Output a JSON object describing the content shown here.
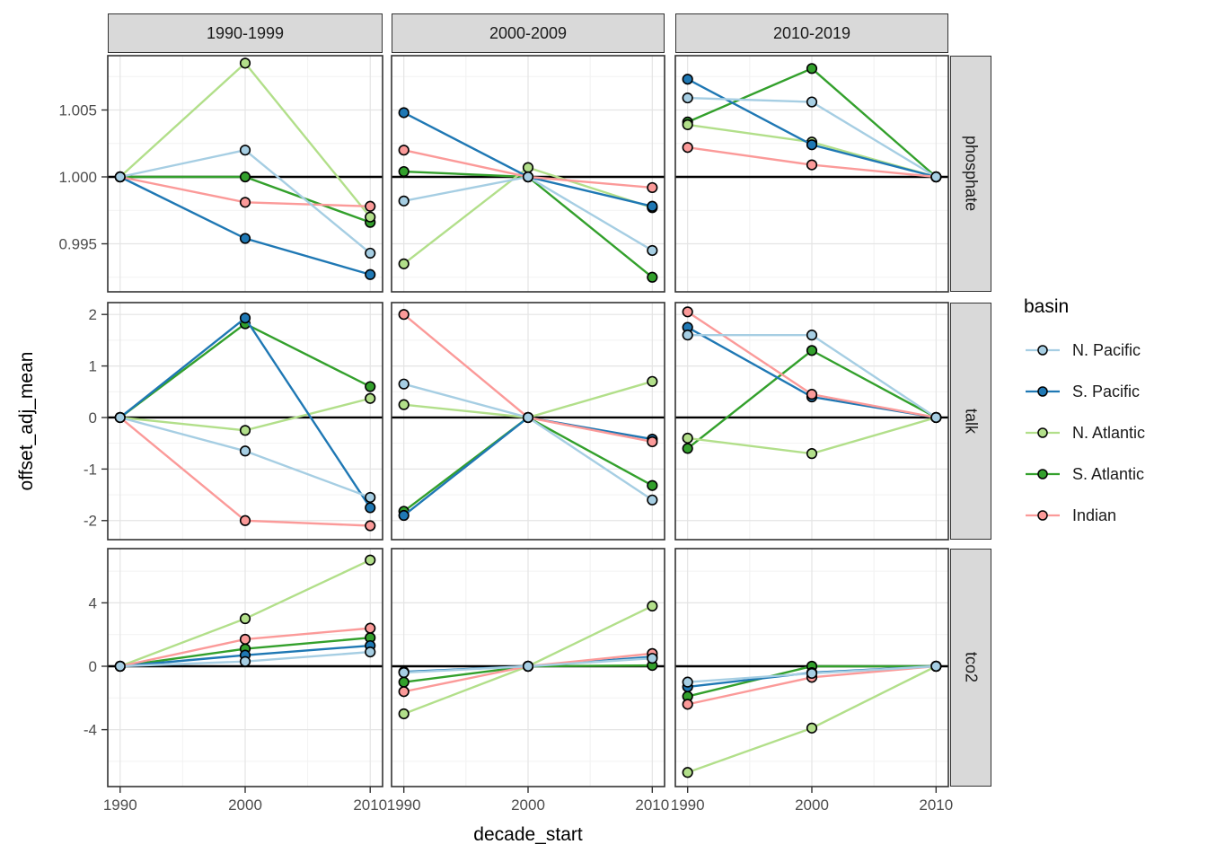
{
  "chart_data": {
    "type": "line",
    "xlabel": "decade_start",
    "ylabel": "offset_adj_mean",
    "legend_title": "basin",
    "legend_position": "right",
    "grid": "on",
    "x": [
      1990,
      2000,
      2010
    ],
    "x_tick_labels": [
      "1990",
      "2000",
      "2010"
    ],
    "x_domain": [
      1990,
      2010
    ],
    "x_minor": [
      1995,
      2005
    ],
    "col_facets": [
      "1990-1999",
      "2000-2009",
      "2010-2019"
    ],
    "row_facets": [
      {
        "label": "phosphate",
        "ticks": [
          0.995,
          1.0,
          1.005
        ],
        "tick_labels": [
          "0.995",
          "1.000",
          "1.005"
        ],
        "minor_ticks": [
          0.9925,
          0.9975,
          1.0025,
          1.0075
        ],
        "ylim": [
          0.99141,
          1.00906
        ],
        "ref_line": 1.0
      },
      {
        "label": "talk",
        "ticks": [
          -2,
          -1,
          0,
          1,
          2
        ],
        "tick_labels": [
          "-2",
          "-1",
          "0",
          "1",
          "2"
        ],
        "minor_ticks": [
          -1.5,
          -0.5,
          0.5,
          1.5
        ],
        "ylim": [
          -2.37,
          2.23
        ],
        "ref_line": 0
      },
      {
        "label": "tco2",
        "ticks": [
          -4,
          0,
          4
        ],
        "tick_labels": [
          "-4",
          "0",
          "4"
        ],
        "minor_ticks": [
          -6,
          -2,
          2,
          6
        ],
        "ylim": [
          -7.59,
          7.42
        ],
        "ref_line": 0
      }
    ],
    "series": [
      {
        "name": "N. Pacific",
        "color": "#a6cee3",
        "values": [
          [
            [
              1.0,
              1.002,
              0.9943
            ],
            [
              0.9982,
              1.0,
              0.9945
            ],
            [
              1.0059,
              1.0056,
              1.0
            ]
          ],
          [
            [
              0,
              -0.65,
              -1.55
            ],
            [
              0.65,
              0,
              -1.6
            ],
            [
              1.6,
              1.6,
              0
            ]
          ],
          [
            [
              0,
              0.3,
              0.9
            ],
            [
              -0.4,
              0,
              0.5
            ],
            [
              -1.0,
              -0.45,
              0
            ]
          ]
        ]
      },
      {
        "name": "S. Pacific",
        "color": "#1f78b4",
        "values": [
          [
            [
              1.0,
              0.9954,
              0.9927
            ],
            [
              1.0048,
              1.0,
              0.9978
            ],
            [
              1.0073,
              1.0024,
              1.0
            ]
          ],
          [
            [
              0,
              1.93,
              -1.75
            ],
            [
              -1.9,
              0,
              -0.42
            ],
            [
              1.75,
              0.4,
              0
            ]
          ],
          [
            [
              0,
              0.7,
              1.3
            ],
            [
              -0.35,
              0,
              0.6
            ],
            [
              -1.3,
              -0.4,
              0
            ]
          ]
        ]
      },
      {
        "name": "N. Atlantic",
        "color": "#b2df8a",
        "values": [
          [
            [
              1.0,
              1.0085,
              0.997
            ],
            [
              0.9935,
              1.0007,
              0.9977
            ],
            [
              1.0039,
              1.0026,
              1.0
            ]
          ],
          [
            [
              0,
              -0.25,
              0.37
            ],
            [
              0.25,
              0,
              0.7
            ],
            [
              -0.4,
              -0.7,
              0
            ]
          ],
          [
            [
              0,
              3.0,
              6.7
            ],
            [
              -3.0,
              0,
              3.8
            ],
            [
              -6.7,
              -3.9,
              0
            ]
          ]
        ]
      },
      {
        "name": "S. Atlantic",
        "color": "#33a02c",
        "values": [
          [
            [
              1.0,
              1.0,
              0.9966
            ],
            [
              1.0004,
              1.0,
              0.9925
            ],
            [
              1.0041,
              1.0081,
              1.0
            ]
          ],
          [
            [
              0,
              1.82,
              0.6
            ],
            [
              -1.82,
              0,
              -1.32
            ],
            [
              -0.6,
              1.3,
              0
            ]
          ],
          [
            [
              0,
              1.1,
              1.8
            ],
            [
              -1.0,
              0,
              0.05
            ],
            [
              -1.9,
              0.0,
              0
            ]
          ]
        ]
      },
      {
        "name": "Indian",
        "color": "#fb9a99",
        "values": [
          [
            [
              1.0,
              0.9981,
              0.9978
            ],
            [
              1.002,
              1.0,
              0.9992
            ],
            [
              1.0022,
              1.0009,
              1.0
            ]
          ],
          [
            [
              0,
              -2.0,
              -2.1
            ],
            [
              2.0,
              0,
              -0.47
            ],
            [
              2.05,
              0.45,
              0
            ]
          ],
          [
            [
              0,
              1.7,
              2.4
            ],
            [
              -1.6,
              0,
              0.8
            ],
            [
              -2.4,
              -0.7,
              0
            ]
          ]
        ]
      }
    ]
  }
}
